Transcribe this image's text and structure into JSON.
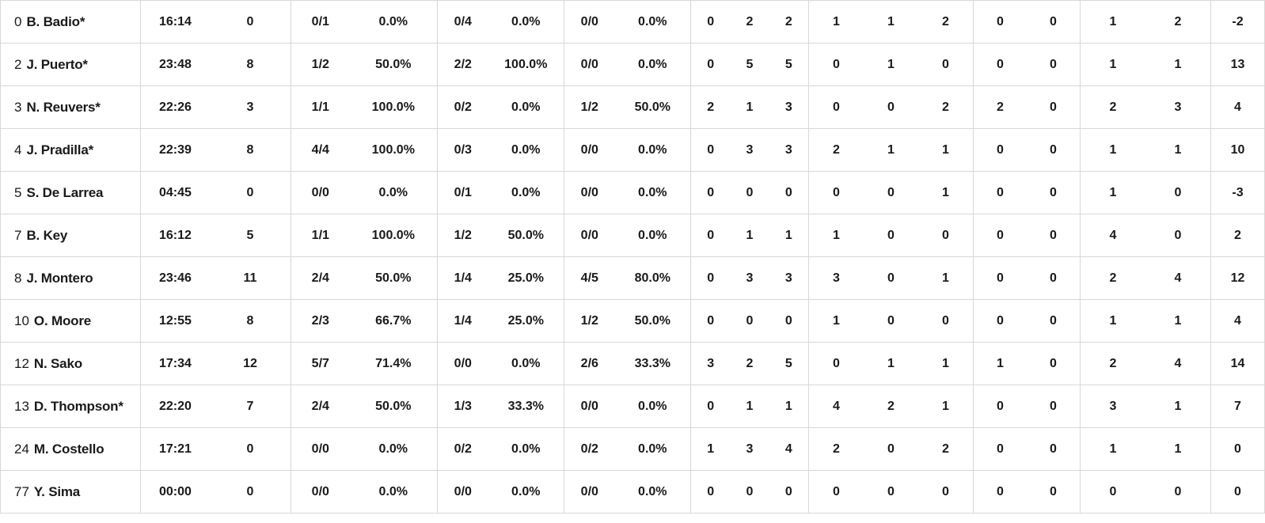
{
  "colors": {
    "background": "#ffffff",
    "row_background": "#ffffff",
    "border": "#d8d8d8",
    "text": "#1a1a1a"
  },
  "players": [
    {
      "number": "0",
      "name": "B. Badio*",
      "min": "16:14",
      "pts": "0",
      "p2": "0/1",
      "p2pct": "0.0%",
      "p3": "0/4",
      "p3pct": "0.0%",
      "ft": "0/0",
      "ftpct": "0.0%",
      "reb_o": "0",
      "reb_d": "2",
      "reb_t": "2",
      "ast": "1",
      "stl": "1",
      "tov": "2",
      "blk_fv": "0",
      "blk_ag": "0",
      "foul_cm": "1",
      "foul_rv": "2",
      "pm": "-2"
    },
    {
      "number": "2",
      "name": "J. Puerto*",
      "min": "23:48",
      "pts": "8",
      "p2": "1/2",
      "p2pct": "50.0%",
      "p3": "2/2",
      "p3pct": "100.0%",
      "ft": "0/0",
      "ftpct": "0.0%",
      "reb_o": "0",
      "reb_d": "5",
      "reb_t": "5",
      "ast": "0",
      "stl": "1",
      "tov": "0",
      "blk_fv": "0",
      "blk_ag": "0",
      "foul_cm": "1",
      "foul_rv": "1",
      "pm": "13"
    },
    {
      "number": "3",
      "name": "N. Reuvers*",
      "min": "22:26",
      "pts": "3",
      "p2": "1/1",
      "p2pct": "100.0%",
      "p3": "0/2",
      "p3pct": "0.0%",
      "ft": "1/2",
      "ftpct": "50.0%",
      "reb_o": "2",
      "reb_d": "1",
      "reb_t": "3",
      "ast": "0",
      "stl": "0",
      "tov": "2",
      "blk_fv": "2",
      "blk_ag": "0",
      "foul_cm": "2",
      "foul_rv": "3",
      "pm": "4"
    },
    {
      "number": "4",
      "name": "J. Pradilla*",
      "min": "22:39",
      "pts": "8",
      "p2": "4/4",
      "p2pct": "100.0%",
      "p3": "0/3",
      "p3pct": "0.0%",
      "ft": "0/0",
      "ftpct": "0.0%",
      "reb_o": "0",
      "reb_d": "3",
      "reb_t": "3",
      "ast": "2",
      "stl": "1",
      "tov": "1",
      "blk_fv": "0",
      "blk_ag": "0",
      "foul_cm": "1",
      "foul_rv": "1",
      "pm": "10"
    },
    {
      "number": "5",
      "name": "S. De Larrea",
      "min": "04:45",
      "pts": "0",
      "p2": "0/0",
      "p2pct": "0.0%",
      "p3": "0/1",
      "p3pct": "0.0%",
      "ft": "0/0",
      "ftpct": "0.0%",
      "reb_o": "0",
      "reb_d": "0",
      "reb_t": "0",
      "ast": "0",
      "stl": "0",
      "tov": "1",
      "blk_fv": "0",
      "blk_ag": "0",
      "foul_cm": "1",
      "foul_rv": "0",
      "pm": "-3"
    },
    {
      "number": "7",
      "name": "B. Key",
      "min": "16:12",
      "pts": "5",
      "p2": "1/1",
      "p2pct": "100.0%",
      "p3": "1/2",
      "p3pct": "50.0%",
      "ft": "0/0",
      "ftpct": "0.0%",
      "reb_o": "0",
      "reb_d": "1",
      "reb_t": "1",
      "ast": "1",
      "stl": "0",
      "tov": "0",
      "blk_fv": "0",
      "blk_ag": "0",
      "foul_cm": "4",
      "foul_rv": "0",
      "pm": "2"
    },
    {
      "number": "8",
      "name": "J. Montero",
      "min": "23:46",
      "pts": "11",
      "p2": "2/4",
      "p2pct": "50.0%",
      "p3": "1/4",
      "p3pct": "25.0%",
      "ft": "4/5",
      "ftpct": "80.0%",
      "reb_o": "0",
      "reb_d": "3",
      "reb_t": "3",
      "ast": "3",
      "stl": "0",
      "tov": "1",
      "blk_fv": "0",
      "blk_ag": "0",
      "foul_cm": "2",
      "foul_rv": "4",
      "pm": "12"
    },
    {
      "number": "10",
      "name": "O. Moore",
      "min": "12:55",
      "pts": "8",
      "p2": "2/3",
      "p2pct": "66.7%",
      "p3": "1/4",
      "p3pct": "25.0%",
      "ft": "1/2",
      "ftpct": "50.0%",
      "reb_o": "0",
      "reb_d": "0",
      "reb_t": "0",
      "ast": "1",
      "stl": "0",
      "tov": "0",
      "blk_fv": "0",
      "blk_ag": "0",
      "foul_cm": "1",
      "foul_rv": "1",
      "pm": "4"
    },
    {
      "number": "12",
      "name": "N. Sako",
      "min": "17:34",
      "pts": "12",
      "p2": "5/7",
      "p2pct": "71.4%",
      "p3": "0/0",
      "p3pct": "0.0%",
      "ft": "2/6",
      "ftpct": "33.3%",
      "reb_o": "3",
      "reb_d": "2",
      "reb_t": "5",
      "ast": "0",
      "stl": "1",
      "tov": "1",
      "blk_fv": "1",
      "blk_ag": "0",
      "foul_cm": "2",
      "foul_rv": "4",
      "pm": "14"
    },
    {
      "number": "13",
      "name": "D. Thompson*",
      "min": "22:20",
      "pts": "7",
      "p2": "2/4",
      "p2pct": "50.0%",
      "p3": "1/3",
      "p3pct": "33.3%",
      "ft": "0/0",
      "ftpct": "0.0%",
      "reb_o": "0",
      "reb_d": "1",
      "reb_t": "1",
      "ast": "4",
      "stl": "2",
      "tov": "1",
      "blk_fv": "0",
      "blk_ag": "0",
      "foul_cm": "3",
      "foul_rv": "1",
      "pm": "7"
    },
    {
      "number": "24",
      "name": "M. Costello",
      "min": "17:21",
      "pts": "0",
      "p2": "0/0",
      "p2pct": "0.0%",
      "p3": "0/2",
      "p3pct": "0.0%",
      "ft": "0/2",
      "ftpct": "0.0%",
      "reb_o": "1",
      "reb_d": "3",
      "reb_t": "4",
      "ast": "2",
      "stl": "0",
      "tov": "2",
      "blk_fv": "0",
      "blk_ag": "0",
      "foul_cm": "1",
      "foul_rv": "1",
      "pm": "0"
    },
    {
      "number": "77",
      "name": "Y. Sima",
      "min": "00:00",
      "pts": "0",
      "p2": "0/0",
      "p2pct": "0.0%",
      "p3": "0/0",
      "p3pct": "0.0%",
      "ft": "0/0",
      "ftpct": "0.0%",
      "reb_o": "0",
      "reb_d": "0",
      "reb_t": "0",
      "ast": "0",
      "stl": "0",
      "tov": "0",
      "blk_fv": "0",
      "blk_ag": "0",
      "foul_cm": "0",
      "foul_rv": "0",
      "pm": "0"
    }
  ]
}
